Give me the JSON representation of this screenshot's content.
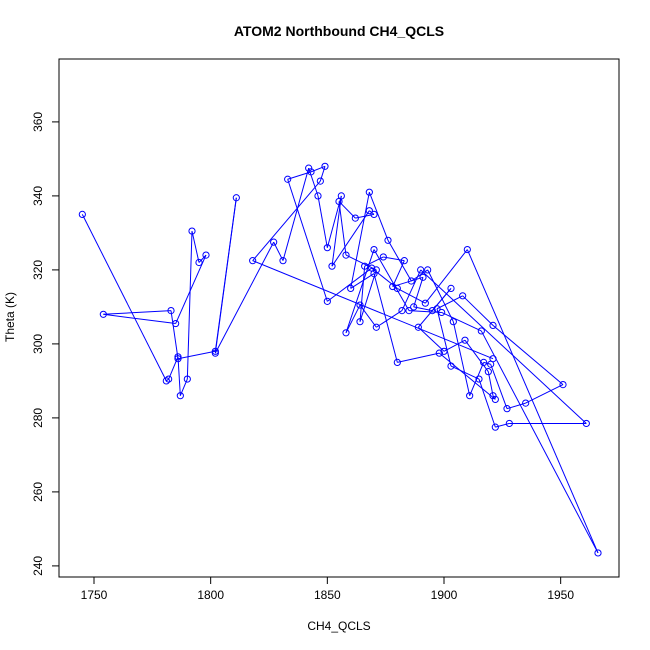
{
  "chart_data": {
    "type": "line",
    "title": "ATOM2 Northbound CH4_QCLS",
    "xlabel": "CH4_QCLS",
    "ylabel": "Theta (K)",
    "xlim": [
      1735,
      1975
    ],
    "ylim": [
      237,
      377
    ],
    "xticks": [
      1750,
      1800,
      1850,
      1900,
      1950
    ],
    "yticks": [
      240,
      260,
      280,
      300,
      320,
      340,
      360
    ],
    "grid": false,
    "legend": "none",
    "series_color": "#0000ff",
    "series": [
      {
        "style": "lines+open-circles",
        "x": [
          1745,
          1781,
          1782,
          1786,
          1787,
          1790,
          1792,
          1795,
          1798,
          1785,
          1754,
          1783,
          1786,
          1802,
          1811,
          1802,
          1827,
          1831,
          1842,
          1846,
          1850,
          1856,
          1852,
          1868,
          1870,
          1862,
          1855,
          1858,
          1871,
          1864,
          1866,
          1874,
          1883,
          1878,
          1891,
          1887,
          1895,
          1903,
          1889,
          1900,
          1909,
          1919,
          1921,
          1922,
          1898,
          1880,
          1870,
          1860,
          1868,
          1876,
          1886,
          1893,
          1904,
          1911,
          1917,
          1920,
          1927,
          1935,
          1951,
          1921,
          1908,
          1897,
          1903,
          1915,
          1922,
          1928,
          1961,
          1890,
          1882,
          1871,
          1864,
          1858,
          1870,
          1885,
          1899,
          1916,
          1966,
          1910,
          1892,
          1880,
          1869,
          1850,
          1833,
          1843,
          1849,
          1847,
          1818,
          1921
        ],
        "y": [
          335,
          290,
          290.5,
          296.5,
          286,
          290.5,
          330.5,
          322,
          324,
          305.5,
          308,
          309,
          296,
          298,
          339.5,
          297.5,
          327.5,
          322.5,
          347.5,
          340,
          326,
          340,
          321,
          336,
          335,
          334,
          338.5,
          324,
          320,
          306,
          321,
          323.5,
          322.5,
          315.5,
          318,
          310,
          309,
          315,
          304.5,
          298,
          301,
          292.5,
          286,
          285,
          297.5,
          295,
          319,
          315,
          341,
          328,
          317,
          320,
          306,
          286,
          295,
          294.5,
          282.5,
          284,
          289,
          305,
          313,
          309.5,
          294,
          290.5,
          277.5,
          278.5,
          278.5,
          320,
          309,
          304.5,
          310.5,
          303,
          325.5,
          309,
          308.5,
          303.5,
          243.5,
          325.5,
          311,
          315,
          320.5,
          311.5,
          344.5,
          346.5,
          348,
          344,
          322.5,
          296
        ]
      }
    ]
  }
}
